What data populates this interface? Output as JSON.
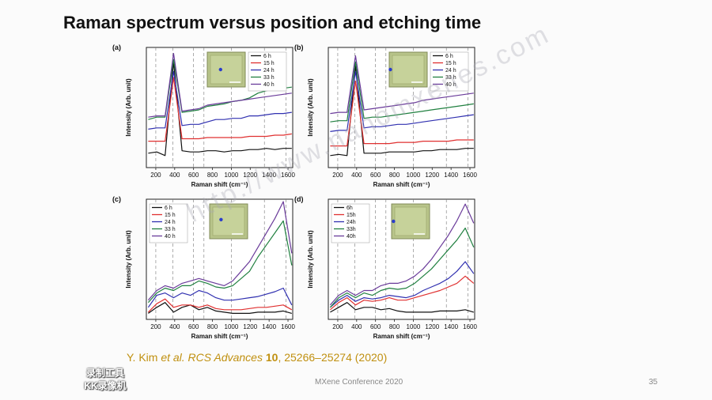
{
  "slide": {
    "title": "Raman spectrum versus position and etching time",
    "citation_authors": "Y. Kim ",
    "citation_etal": "et al.",
    "citation_journal": " RCS Advances ",
    "citation_volume": "10",
    "citation_pages": ", 25266–25274 (2020)",
    "footer": "MXene Conference 2020",
    "page_number": "35",
    "watermark_line1": "录制工具",
    "watermark_line2": "KK录像机",
    "site_watermark": "http://www.nanomxenes.com"
  },
  "chart_data": [
    {
      "type": "line",
      "panel_label": "(a)",
      "xlabel": "Raman shift (cm⁻¹)",
      "ylabel": "Intensity (Arb. unit)",
      "xlim": [
        100,
        1650
      ],
      "xticks": [
        200,
        400,
        600,
        800,
        1000,
        1200,
        1400,
        1600
      ],
      "dashed_lines": [
        200,
        380,
        600,
        710,
        1000,
        1350,
        1580
      ],
      "inset_marker": [
        0.35,
        0.5
      ],
      "legend": "top-right",
      "series": [
        {
          "name": "6 h",
          "color": "#111111",
          "y": [
            0.12,
            0.13,
            0.1,
            0.88,
            0.14,
            0.13,
            0.13,
            0.14,
            0.14,
            0.13,
            0.14,
            0.14,
            0.15,
            0.15,
            0.16,
            0.15,
            0.16,
            0.16
          ]
        },
        {
          "name": "15 h",
          "color": "#e03030",
          "y": [
            0.22,
            0.22,
            0.22,
            0.75,
            0.24,
            0.24,
            0.24,
            0.25,
            0.25,
            0.25,
            0.25,
            0.25,
            0.26,
            0.26,
            0.26,
            0.27,
            0.27,
            0.28
          ]
        },
        {
          "name": "24 h",
          "color": "#3030b0",
          "y": [
            0.32,
            0.33,
            0.33,
            0.8,
            0.35,
            0.36,
            0.36,
            0.38,
            0.4,
            0.4,
            0.41,
            0.41,
            0.43,
            0.43,
            0.44,
            0.45,
            0.45,
            0.46
          ]
        },
        {
          "name": "33 h",
          "color": "#208040",
          "y": [
            0.4,
            0.42,
            0.42,
            0.9,
            0.46,
            0.47,
            0.48,
            0.51,
            0.52,
            0.53,
            0.55,
            0.56,
            0.58,
            0.62,
            0.64,
            0.65,
            0.66,
            0.67
          ]
        },
        {
          "name": "40 h",
          "color": "#6a3b9a",
          "y": [
            0.42,
            0.43,
            0.43,
            0.95,
            0.47,
            0.48,
            0.49,
            0.52,
            0.53,
            0.54,
            0.55,
            0.56,
            0.57,
            0.58,
            0.59,
            0.6,
            0.61,
            0.62
          ]
        }
      ]
    },
    {
      "type": "line",
      "panel_label": "(b)",
      "xlabel": "Raman shift (cm⁻¹)",
      "ylabel": "Intensity (Arb. unit)",
      "xlim": [
        100,
        1650
      ],
      "xticks": [
        200,
        400,
        600,
        800,
        1000,
        1200,
        1400,
        1600
      ],
      "dashed_lines": [
        200,
        380,
        600,
        710,
        1000,
        1350,
        1580
      ],
      "inset_marker": [
        0.03,
        0.5
      ],
      "legend": "top-right",
      "series": [
        {
          "name": "6 h",
          "color": "#111111",
          "y": [
            0.1,
            0.11,
            0.1,
            0.85,
            0.12,
            0.12,
            0.12,
            0.13,
            0.13,
            0.13,
            0.13,
            0.14,
            0.14,
            0.15,
            0.15,
            0.15,
            0.16,
            0.16
          ]
        },
        {
          "name": "15 h",
          "color": "#e03030",
          "y": [
            0.18,
            0.18,
            0.18,
            0.72,
            0.2,
            0.2,
            0.2,
            0.2,
            0.21,
            0.21,
            0.21,
            0.22,
            0.22,
            0.22,
            0.22,
            0.23,
            0.23,
            0.23
          ]
        },
        {
          "name": "24 h",
          "color": "#3030b0",
          "y": [
            0.3,
            0.31,
            0.31,
            0.8,
            0.33,
            0.34,
            0.34,
            0.35,
            0.36,
            0.36,
            0.37,
            0.38,
            0.39,
            0.4,
            0.41,
            0.42,
            0.43,
            0.44
          ]
        },
        {
          "name": "33 h",
          "color": "#208040",
          "y": [
            0.38,
            0.39,
            0.39,
            0.88,
            0.41,
            0.42,
            0.42,
            0.43,
            0.44,
            0.45,
            0.46,
            0.47,
            0.48,
            0.49,
            0.5,
            0.51,
            0.52,
            0.53
          ]
        },
        {
          "name": "40 h",
          "color": "#6a3b9a",
          "y": [
            0.45,
            0.46,
            0.46,
            0.93,
            0.48,
            0.49,
            0.5,
            0.51,
            0.52,
            0.53,
            0.54,
            0.56,
            0.57,
            0.58,
            0.59,
            0.6,
            0.61,
            0.62
          ]
        }
      ]
    },
    {
      "type": "line",
      "panel_label": "(c)",
      "xlabel": "Raman shift (cm⁻¹)",
      "ylabel": "Intensity (Arb. unit)",
      "xlim": [
        100,
        1650
      ],
      "xticks": [
        200,
        400,
        600,
        800,
        1000,
        1200,
        1400,
        1600
      ],
      "dashed_lines": [
        200,
        380,
        600,
        710,
        1000,
        1350,
        1580
      ],
      "inset_marker": [
        0.3,
        0.45
      ],
      "legend": "top-left",
      "series": [
        {
          "name": "6 h",
          "color": "#111111",
          "y": [
            0.05,
            0.1,
            0.14,
            0.06,
            0.1,
            0.12,
            0.08,
            0.1,
            0.07,
            0.06,
            0.05,
            0.05,
            0.05,
            0.06,
            0.06,
            0.06,
            0.07,
            0.05
          ]
        },
        {
          "name": "15 h",
          "color": "#e03030",
          "y": [
            0.06,
            0.13,
            0.17,
            0.1,
            0.12,
            0.12,
            0.1,
            0.12,
            0.09,
            0.08,
            0.08,
            0.08,
            0.09,
            0.1,
            0.1,
            0.11,
            0.12,
            0.08
          ]
        },
        {
          "name": "24 h",
          "color": "#3030b0",
          "y": [
            0.1,
            0.2,
            0.22,
            0.18,
            0.22,
            0.2,
            0.24,
            0.22,
            0.18,
            0.16,
            0.16,
            0.17,
            0.18,
            0.19,
            0.21,
            0.23,
            0.26,
            0.12
          ]
        },
        {
          "name": "33 h",
          "color": "#208040",
          "y": [
            0.14,
            0.22,
            0.26,
            0.24,
            0.28,
            0.28,
            0.32,
            0.3,
            0.27,
            0.26,
            0.28,
            0.34,
            0.4,
            0.52,
            0.62,
            0.72,
            0.82,
            0.45
          ]
        },
        {
          "name": "40 h",
          "color": "#6a3b9a",
          "y": [
            0.16,
            0.24,
            0.28,
            0.26,
            0.3,
            0.32,
            0.34,
            0.32,
            0.3,
            0.28,
            0.32,
            0.4,
            0.48,
            0.6,
            0.72,
            0.84,
            0.98,
            0.55
          ]
        }
      ]
    },
    {
      "type": "line",
      "panel_label": "(d)",
      "xlabel": "Raman shift (cm⁻¹)",
      "ylabel": "Intensity (Arb. unit)",
      "xlim": [
        100,
        1650
      ],
      "xticks": [
        200,
        400,
        600,
        800,
        1000,
        1200,
        1400,
        1600
      ],
      "dashed_lines": [
        200,
        380,
        600,
        710,
        1000,
        1350,
        1580
      ],
      "inset_marker": [
        0.05,
        0.5
      ],
      "legend": "top-left",
      "series": [
        {
          "name": "6h",
          "color": "#111111",
          "y": [
            0.06,
            0.1,
            0.14,
            0.08,
            0.1,
            0.1,
            0.08,
            0.09,
            0.07,
            0.06,
            0.06,
            0.06,
            0.06,
            0.07,
            0.07,
            0.07,
            0.08,
            0.06
          ]
        },
        {
          "name": "15h",
          "color": "#e03030",
          "y": [
            0.08,
            0.14,
            0.18,
            0.12,
            0.16,
            0.15,
            0.16,
            0.18,
            0.16,
            0.16,
            0.18,
            0.2,
            0.22,
            0.24,
            0.27,
            0.3,
            0.36,
            0.3
          ]
        },
        {
          "name": "24h",
          "color": "#3030b0",
          "y": [
            0.1,
            0.16,
            0.2,
            0.15,
            0.18,
            0.17,
            0.18,
            0.2,
            0.19,
            0.18,
            0.2,
            0.24,
            0.27,
            0.3,
            0.34,
            0.4,
            0.48,
            0.38
          ]
        },
        {
          "name": "33h",
          "color": "#208040",
          "y": [
            0.1,
            0.18,
            0.22,
            0.18,
            0.22,
            0.2,
            0.24,
            0.26,
            0.25,
            0.26,
            0.3,
            0.36,
            0.42,
            0.5,
            0.58,
            0.66,
            0.76,
            0.6
          ]
        },
        {
          "name": "40h",
          "color": "#6a3b9a",
          "y": [
            0.12,
            0.2,
            0.24,
            0.2,
            0.24,
            0.24,
            0.28,
            0.3,
            0.3,
            0.32,
            0.36,
            0.42,
            0.5,
            0.6,
            0.7,
            0.82,
            0.96,
            0.8
          ]
        }
      ]
    }
  ]
}
